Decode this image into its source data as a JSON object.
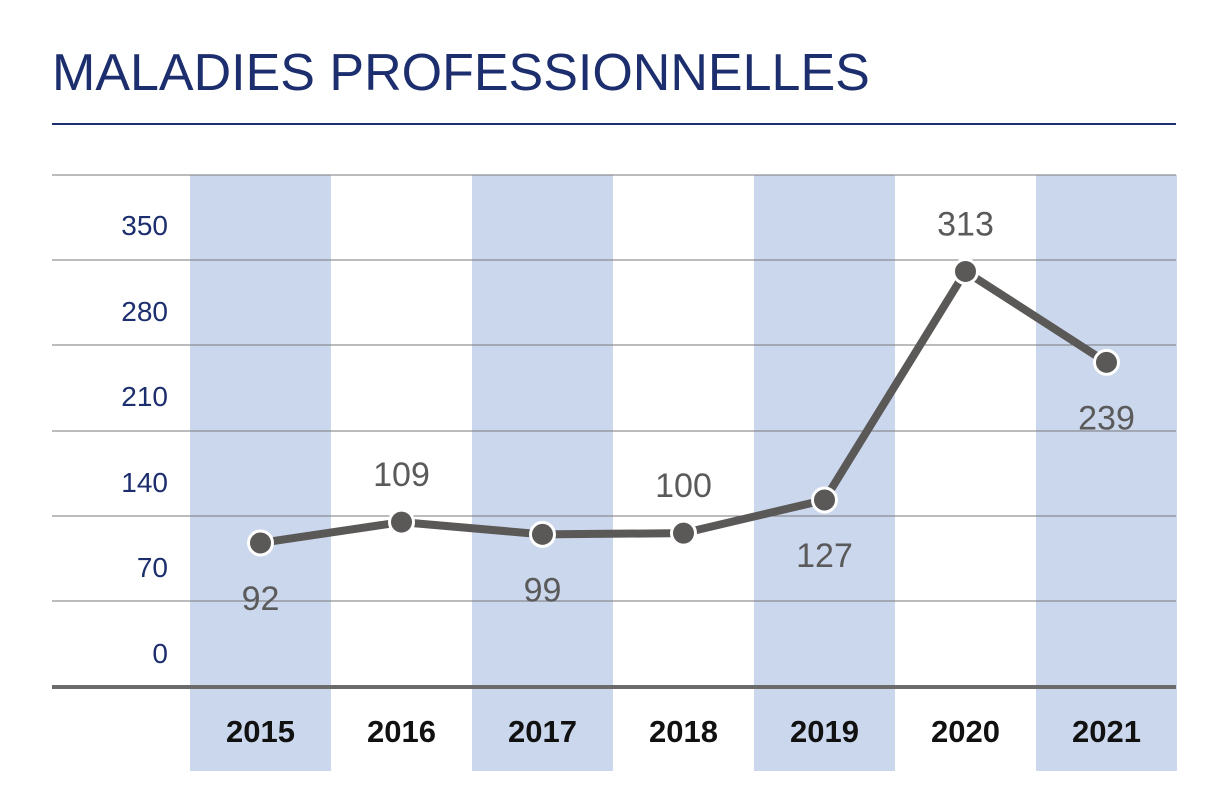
{
  "title": "MALADIES PROFESSIONNELLES",
  "colors": {
    "title": "#1c2e6e",
    "rule": "#1c2e6e",
    "band": "#cbd7ec",
    "grid": "#7a7a7a",
    "baseline": "#6b6b6b",
    "line": "#5b5858",
    "marker": "#5b5858",
    "ytick": "#1c2e6e",
    "xtick": "#111111",
    "datalabel": "#5a5a5a"
  },
  "chart_data": {
    "type": "line",
    "title": "MALADIES PROFESSIONNELLES",
    "xlabel": "",
    "ylabel": "",
    "categories": [
      "2015",
      "2016",
      "2017",
      "2018",
      "2019",
      "2020",
      "2021"
    ],
    "series": [
      {
        "values": [
          92,
          109,
          99,
          100,
          127,
          313,
          239
        ]
      }
    ],
    "label_positions": [
      "below",
      "above",
      "below",
      "above",
      "below",
      "above",
      "below"
    ],
    "yticks": [
      0,
      70,
      140,
      210,
      280,
      350
    ],
    "ylim": [
      0,
      350
    ],
    "grid": true,
    "legend": "none",
    "alternating_column_bands": true
  }
}
